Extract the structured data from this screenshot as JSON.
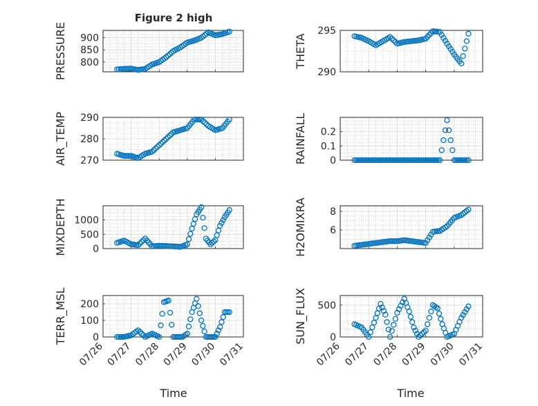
{
  "figure": {
    "title": "Figure 2 high"
  },
  "colors": {
    "marker": "#0072BD",
    "axis": "#262626",
    "grid": "#b0b0b0",
    "background": "#ffffff"
  },
  "x_axis": {
    "type": "date",
    "range": [
      "2012-07-26",
      "2012-07-31"
    ],
    "ticks": [
      "07/26",
      "07/27",
      "07/28",
      "07/29",
      "07/30",
      "07/31"
    ],
    "xlabel": "Time"
  },
  "chart_data": [
    {
      "id": "pressure",
      "type": "scatter",
      "title": "Figure 2 high",
      "ylabel": "PRESSURE",
      "ylim": [
        760,
        930
      ],
      "yticks": [
        800,
        850,
        900
      ],
      "grid": true,
      "marker": "open-circle",
      "x_start": "2012-07-26 12:00",
      "x_end": "2012-07-30 12:00",
      "x": [
        "07/26 12:00",
        "07/26 18:00",
        "07/27 00:00",
        "07/27 06:00",
        "07/27 12:00",
        "07/27 18:00",
        "07/28 00:00",
        "07/28 06:00",
        "07/28 12:00",
        "07/28 18:00",
        "07/29 00:00",
        "07/29 06:00",
        "07/29 12:00",
        "07/29 18:00",
        "07/30 00:00",
        "07/30 06:00",
        "07/30 12:00"
      ],
      "y": [
        770,
        772,
        773,
        768,
        772,
        790,
        800,
        820,
        845,
        860,
        880,
        888,
        900,
        922,
        910,
        915,
        925
      ]
    },
    {
      "id": "theta",
      "type": "scatter",
      "title": "",
      "ylabel": "THETA",
      "ylim": [
        290,
        295
      ],
      "yticks": [
        290,
        295
      ],
      "grid": true,
      "marker": "open-circle",
      "x_start": "2012-07-26 12:00",
      "x_end": "2012-07-30 12:00",
      "x": [
        "07/26 12:00",
        "07/26 18:00",
        "07/27 00:00",
        "07/27 06:00",
        "07/27 12:00",
        "07/27 18:00",
        "07/28 00:00",
        "07/28 06:00",
        "07/28 12:00",
        "07/28 18:00",
        "07/29 00:00",
        "07/29 06:00",
        "07/29 12:00",
        "07/29 18:00",
        "07/30 00:00",
        "07/30 06:00",
        "07/30 12:00"
      ],
      "y": [
        294.3,
        294.1,
        293.7,
        293.2,
        293.7,
        294.2,
        293.4,
        293.6,
        293.7,
        293.8,
        294.0,
        294.9,
        294.8,
        293.4,
        292.1,
        291.0,
        294.6
      ]
    },
    {
      "id": "air_temp",
      "type": "scatter",
      "title": "",
      "ylabel": "AIR_TEMP",
      "ylim": [
        270,
        290
      ],
      "yticks": [
        270,
        280,
        290
      ],
      "grid": true,
      "marker": "open-circle",
      "x_start": "2012-07-26 12:00",
      "x_end": "2012-07-30 12:00",
      "x": [
        "07/26 12:00",
        "07/26 18:00",
        "07/27 00:00",
        "07/27 06:00",
        "07/27 12:00",
        "07/27 18:00",
        "07/28 00:00",
        "07/28 06:00",
        "07/28 12:00",
        "07/28 18:00",
        "07/29 00:00",
        "07/29 06:00",
        "07/29 12:00",
        "07/29 18:00",
        "07/30 00:00",
        "07/30 06:00",
        "07/30 12:00"
      ],
      "y": [
        273,
        272,
        272,
        271,
        273,
        274,
        277,
        280,
        283,
        284,
        285,
        289,
        289,
        286,
        284,
        285,
        289
      ]
    },
    {
      "id": "rainfall",
      "type": "scatter",
      "title": "",
      "ylabel": "RAINFALL",
      "ylim": [
        0,
        0.3
      ],
      "yticks": [
        0,
        0.1,
        0.2
      ],
      "grid": true,
      "marker": "open-circle",
      "x_start": "2012-07-26 12:00",
      "x_end": "2012-07-30 12:00",
      "x": [
        "07/26 12:00",
        "07/27 00:00",
        "07/27 12:00",
        "07/28 00:00",
        "07/28 12:00",
        "07/29 00:00",
        "07/29 12:00",
        "07/29 18:00",
        "07/30 00:00",
        "07/30 12:00"
      ],
      "y": [
        0,
        0,
        0,
        0,
        0,
        0,
        0,
        0.28,
        0,
        0
      ]
    },
    {
      "id": "mixdepth",
      "type": "scatter",
      "title": "",
      "ylabel": "MIXDEPTH",
      "ylim": [
        0,
        1500
      ],
      "yticks": [
        0,
        500,
        1000
      ],
      "grid": true,
      "marker": "open-circle",
      "x_start": "2012-07-26 12:00",
      "x_end": "2012-07-30 12:00",
      "x": [
        "07/26 12:00",
        "07/26 18:00",
        "07/27 00:00",
        "07/27 06:00",
        "07/27 12:00",
        "07/27 18:00",
        "07/28 00:00",
        "07/28 06:00",
        "07/28 12:00",
        "07/28 18:00",
        "07/29 00:00",
        "07/29 04:00",
        "07/29 08:00",
        "07/29 12:00",
        "07/29 16:00",
        "07/29 20:00",
        "07/30 00:00",
        "07/30 04:00",
        "07/30 08:00",
        "07/30 12:00"
      ],
      "y": [
        200,
        280,
        150,
        120,
        350,
        80,
        100,
        90,
        80,
        60,
        150,
        700,
        1200,
        1450,
        350,
        150,
        300,
        800,
        1100,
        1350
      ]
    },
    {
      "id": "h2omixra",
      "type": "scatter",
      "title": "",
      "ylabel": "H2OMIXRA",
      "ylim": [
        4,
        8.6
      ],
      "yticks": [
        6,
        8
      ],
      "grid": true,
      "marker": "open-circle",
      "x_start": "2012-07-26 12:00",
      "x_end": "2012-07-30 12:00",
      "x": [
        "07/26 12:00",
        "07/26 18:00",
        "07/27 00:00",
        "07/27 06:00",
        "07/27 12:00",
        "07/27 18:00",
        "07/28 00:00",
        "07/28 06:00",
        "07/28 12:00",
        "07/28 18:00",
        "07/29 00:00",
        "07/29 06:00",
        "07/29 12:00",
        "07/29 18:00",
        "07/30 00:00",
        "07/30 06:00",
        "07/30 12:00"
      ],
      "y": [
        4.3,
        4.4,
        4.5,
        4.6,
        4.7,
        4.8,
        4.8,
        4.9,
        4.8,
        4.7,
        4.6,
        5.8,
        5.9,
        6.4,
        7.3,
        7.6,
        8.2
      ]
    },
    {
      "id": "terr_msl",
      "type": "scatter",
      "title": "",
      "ylabel": "TERR_MSL",
      "ylim": [
        0,
        250
      ],
      "yticks": [
        0,
        100,
        200
      ],
      "grid": true,
      "marker": "open-circle",
      "x_start": "2012-07-26 12:00",
      "x_end": "2012-07-30 12:00",
      "x": [
        "07/26 12:00",
        "07/26 18:00",
        "07/27 00:00",
        "07/27 06:00",
        "07/27 12:00",
        "07/27 18:00",
        "07/28 00:00",
        "07/28 04:00",
        "07/28 08:00",
        "07/28 12:00",
        "07/28 16:00",
        "07/28 20:00",
        "07/29 00:00",
        "07/29 04:00",
        "07/29 08:00",
        "07/29 12:00",
        "07/29 16:00",
        "07/29 20:00",
        "07/30 00:00",
        "07/30 04:00",
        "07/30 08:00",
        "07/30 12:00"
      ],
      "y": [
        0,
        0,
        10,
        40,
        0,
        20,
        0,
        210,
        220,
        0,
        0,
        0,
        20,
        150,
        230,
        100,
        0,
        0,
        0,
        60,
        150,
        150
      ]
    },
    {
      "id": "sun_flux",
      "type": "scatter",
      "title": "",
      "ylabel": "SUN_FLUX",
      "ylim": [
        0,
        650
      ],
      "yticks": [
        0,
        500
      ],
      "grid": true,
      "marker": "open-circle",
      "x_start": "2012-07-26 12:00",
      "x_end": "2012-07-30 12:00",
      "x": [
        "07/26 12:00",
        "07/26 18:00",
        "07/27 00:00",
        "07/27 06:00",
        "07/27 10:00",
        "07/27 14:00",
        "07/27 18:00",
        "07/28 00:00",
        "07/28 06:00",
        "07/28 10:00",
        "07/28 14:00",
        "07/28 18:00",
        "07/29 00:00",
        "07/29 06:00",
        "07/29 10:00",
        "07/29 14:00",
        "07/29 18:00",
        "07/30 00:00",
        "07/30 06:00",
        "07/30 12:00"
      ],
      "y": [
        200,
        150,
        0,
        300,
        520,
        350,
        0,
        380,
        600,
        400,
        150,
        0,
        100,
        500,
        450,
        200,
        0,
        50,
        300,
        480
      ]
    }
  ]
}
